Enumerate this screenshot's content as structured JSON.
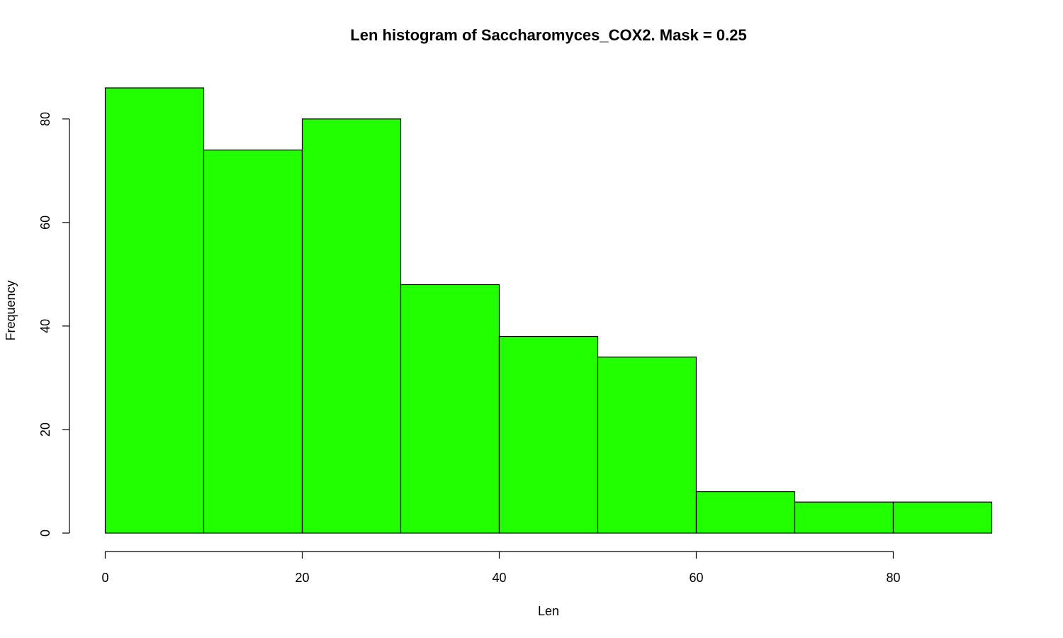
{
  "chart_data": {
    "type": "bar",
    "title": "Len histogram of Saccharomyces_COX2. Mask = 0.25",
    "xlabel": "Len",
    "ylabel": "Frequency",
    "bins": [
      [
        0,
        10
      ],
      [
        10,
        20
      ],
      [
        20,
        30
      ],
      [
        30,
        40
      ],
      [
        40,
        50
      ],
      [
        50,
        60
      ],
      [
        60,
        70
      ],
      [
        70,
        80
      ],
      [
        80,
        90
      ]
    ],
    "values": [
      86,
      74,
      80,
      48,
      38,
      34,
      8,
      6,
      6
    ],
    "xlim": [
      0,
      90
    ],
    "ylim": [
      0,
      86
    ],
    "x_ticks": [
      0,
      20,
      40,
      60,
      80
    ],
    "y_ticks": [
      0,
      20,
      40,
      60,
      80
    ],
    "bar_color": "#22ff00",
    "grid": false
  }
}
